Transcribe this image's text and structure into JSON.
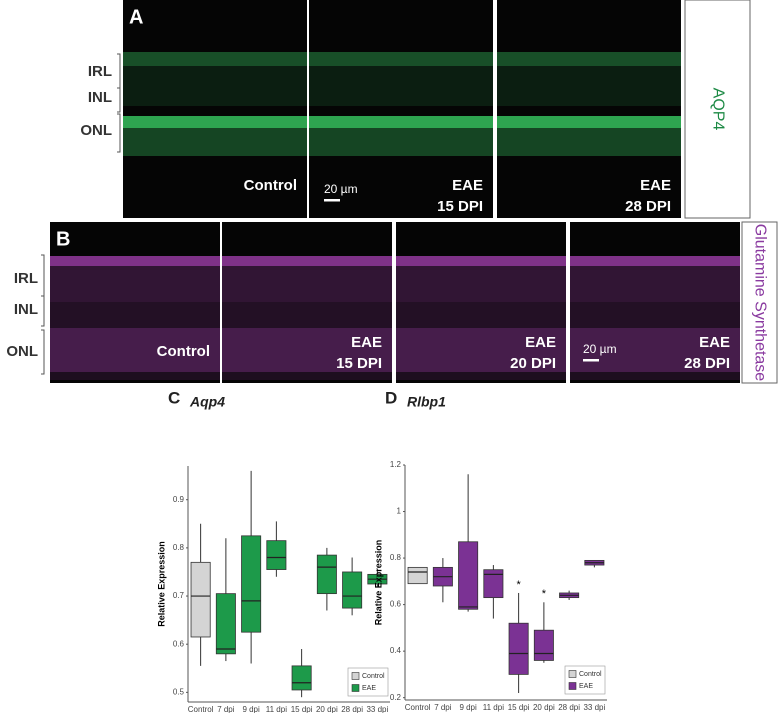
{
  "figure": {
    "panel_a": {
      "label": "A",
      "layer_labels": [
        "IRL",
        "INL",
        "ONL"
      ],
      "images": [
        [
          "Control"
        ],
        [
          "EAE",
          "15 DPI"
        ],
        [
          "EAE",
          "28 DPI"
        ]
      ],
      "scale_bar": "20 µm",
      "stain": "AQP4",
      "stain_color": "#1d8a45",
      "signal_color": "#3cd96a"
    },
    "panel_b": {
      "label": "B",
      "layer_labels": [
        "IRL",
        "INL",
        "ONL"
      ],
      "images": [
        [
          "Control"
        ],
        [
          "EAE",
          "15 DPI"
        ],
        [
          "EAE",
          "20 DPI"
        ],
        [
          "EAE",
          "28 DPI"
        ]
      ],
      "scale_bar": "20 µm",
      "stain": "Glutamine Synthetase",
      "stain_color": "#8a3aa0",
      "signal_color": "#d050e0"
    }
  },
  "chart_data": [
    {
      "type": "box",
      "label": "C",
      "title": "Aqp4",
      "y_label": "Relative Expression",
      "categories": [
        "Control",
        "7 dpi",
        "9 dpi",
        "11 dpi",
        "15 dpi",
        "20 dpi",
        "28 dpi",
        "33 dpi"
      ],
      "ylim": [
        0.48,
        0.97
      ],
      "yticks": [
        0.5,
        0.6,
        0.7,
        0.8,
        0.9
      ],
      "legend": "bottom-right",
      "annotations": [
        null,
        null,
        null,
        null,
        null,
        null,
        null,
        null
      ],
      "series": [
        {
          "name": "Control",
          "color": "#d4d4d4",
          "values": [
            {
              "min": 0.555,
              "q1": 0.615,
              "median": 0.7,
              "q3": 0.77,
              "max": 0.85
            },
            null,
            null,
            null,
            null,
            null,
            null,
            null
          ]
        },
        {
          "name": "EAE",
          "color": "#1d9a4a",
          "values": [
            null,
            {
              "min": 0.565,
              "q1": 0.58,
              "median": 0.59,
              "q3": 0.705,
              "max": 0.82
            },
            {
              "min": 0.56,
              "q1": 0.625,
              "median": 0.69,
              "q3": 0.825,
              "max": 0.96
            },
            {
              "min": 0.74,
              "q1": 0.755,
              "median": 0.78,
              "q3": 0.815,
              "max": 0.855
            },
            {
              "min": 0.49,
              "q1": 0.505,
              "median": 0.52,
              "q3": 0.555,
              "max": 0.59
            },
            {
              "min": 0.67,
              "q1": 0.705,
              "median": 0.76,
              "q3": 0.785,
              "max": 0.8
            },
            {
              "min": 0.66,
              "q1": 0.675,
              "median": 0.7,
              "q3": 0.75,
              "max": 0.78
            },
            {
              "min": 0.72,
              "q1": 0.725,
              "median": 0.735,
              "q3": 0.745,
              "max": 0.755
            }
          ]
        }
      ]
    },
    {
      "type": "box",
      "label": "D",
      "title": "Rlbp1",
      "y_label": "Relative Expression",
      "categories": [
        "Control",
        "7 dpi",
        "9 dpi",
        "11 dpi",
        "15 dpi",
        "20 dpi",
        "28 dpi",
        "33 dpi"
      ],
      "ylim": [
        0.19,
        1.2
      ],
      "yticks": [
        0.2,
        0.4,
        0.6,
        0.8,
        1.0,
        1.2
      ],
      "legend": "bottom-right",
      "annotations": [
        null,
        null,
        null,
        null,
        "*",
        "*",
        null,
        null
      ],
      "series": [
        {
          "name": "Control",
          "color": "#d4d4d4",
          "values": [
            {
              "min": 0.69,
              "q1": 0.69,
              "median": 0.74,
              "q3": 0.76,
              "max": 0.76
            },
            null,
            null,
            null,
            null,
            null,
            null,
            null
          ]
        },
        {
          "name": "EAE",
          "color": "#7b3294",
          "values": [
            null,
            {
              "min": 0.61,
              "q1": 0.68,
              "median": 0.72,
              "q3": 0.76,
              "max": 0.8
            },
            {
              "min": 0.57,
              "q1": 0.58,
              "median": 0.59,
              "q3": 0.87,
              "max": 1.16
            },
            {
              "min": 0.54,
              "q1": 0.63,
              "median": 0.73,
              "q3": 0.75,
              "max": 0.77
            },
            {
              "min": 0.22,
              "q1": 0.3,
              "median": 0.39,
              "q3": 0.52,
              "max": 0.65
            },
            {
              "min": 0.35,
              "q1": 0.36,
              "median": 0.39,
              "q3": 0.49,
              "max": 0.61
            },
            {
              "min": 0.62,
              "q1": 0.63,
              "median": 0.64,
              "q3": 0.65,
              "max": 0.66
            },
            {
              "min": 0.76,
              "q1": 0.77,
              "median": 0.78,
              "q3": 0.79,
              "max": 0.79
            }
          ]
        }
      ]
    }
  ]
}
